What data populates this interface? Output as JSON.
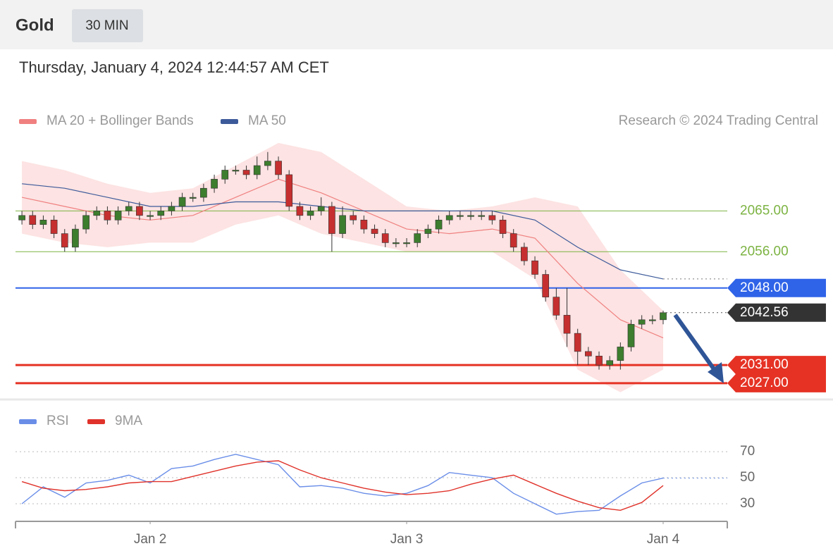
{
  "header": {
    "title": "Gold",
    "interval": "30 MIN",
    "timestamp": "Thursday, January 4, 2024 12:44:57 AM CET",
    "credit": "Research © 2024 Trading Central"
  },
  "chart_data": [
    {
      "type": "candlestick",
      "x": [
        -12,
        -11,
        -10,
        -9,
        -8,
        -7,
        -6,
        -5,
        -4,
        -3,
        -2,
        -1,
        0,
        1,
        2,
        3,
        4,
        5,
        6,
        7,
        8,
        9,
        10,
        11,
        12,
        13,
        14,
        15,
        16,
        17,
        18,
        19,
        20,
        21,
        22,
        23,
        24,
        25,
        26,
        27,
        28,
        29,
        30,
        31,
        32,
        33,
        34,
        35,
        36,
        37,
        38,
        39,
        40,
        41,
        42,
        43,
        44,
        45,
        46,
        47,
        48
      ],
      "open": [
        2063,
        2064,
        2062,
        2063,
        2060,
        2057,
        2061,
        2064,
        2065,
        2063,
        2065,
        2066,
        2064,
        2064,
        2065,
        2066,
        2068,
        2068,
        2070,
        2072,
        2074,
        2074,
        2073,
        2075,
        2076,
        2073,
        2066,
        2064,
        2065,
        2066,
        2060,
        2064,
        2063,
        2061,
        2060,
        2058,
        2058,
        2058,
        2060,
        2061,
        2063,
        2064,
        2064,
        2064,
        2064,
        2063,
        2060,
        2057,
        2054,
        2051,
        2046,
        2042,
        2038,
        2034,
        2033,
        2031,
        2032,
        2035,
        2040,
        2041,
        2041
      ],
      "high": [
        2065,
        2065,
        2064,
        2064,
        2061,
        2062,
        2065,
        2066,
        2066,
        2066,
        2067,
        2067,
        2065,
        2066,
        2067,
        2069,
        2069,
        2071,
        2073,
        2075,
        2075,
        2075,
        2077,
        2078,
        2077,
        2074,
        2067,
        2066,
        2068,
        2067,
        2066,
        2065,
        2064,
        2062,
        2061,
        2059,
        2059,
        2061,
        2062,
        2064,
        2065,
        2065,
        2065,
        2065,
        2065,
        2064,
        2061,
        2058,
        2055,
        2052,
        2048,
        2048,
        2039,
        2035,
        2034,
        2033,
        2036,
        2041,
        2042,
        2042,
        2043
      ],
      "low": [
        2062,
        2061,
        2061,
        2059,
        2056,
        2056,
        2060,
        2063,
        2062,
        2062,
        2064,
        2063,
        2063,
        2063,
        2064,
        2065,
        2067,
        2067,
        2069,
        2071,
        2073,
        2072,
        2072,
        2074,
        2072,
        2065,
        2063,
        2063,
        2064,
        2056,
        2059,
        2062,
        2060,
        2059,
        2057,
        2057,
        2057,
        2057,
        2059,
        2060,
        2062,
        2063,
        2063,
        2063,
        2062,
        2059,
        2056,
        2053,
        2050,
        2045,
        2041,
        2035,
        2031,
        2031,
        2030,
        2030,
        2030,
        2034,
        2039,
        2040,
        2040
      ],
      "close": [
        2064,
        2062,
        2063,
        2060,
        2057,
        2061,
        2064,
        2065,
        2063,
        2065,
        2066,
        2064,
        2064,
        2065,
        2066,
        2068,
        2068,
        2070,
        2072,
        2074,
        2074,
        2073,
        2075,
        2076,
        2073,
        2066,
        2064,
        2065,
        2066,
        2060,
        2064,
        2063,
        2061,
        2060,
        2058,
        2058,
        2058,
        2060,
        2061,
        2063,
        2064,
        2064,
        2064,
        2064,
        2063,
        2060,
        2057,
        2054,
        2051,
        2046,
        2042,
        2038,
        2034,
        2033,
        2031,
        2032,
        2035,
        2040,
        2041,
        2041,
        2042.56
      ],
      "up_color": "#3d7d2e",
      "down_color": "#c62f2f",
      "xlim": [
        -12.6,
        54
      ],
      "ylim": [
        2024.5,
        2082
      ],
      "overlays": {
        "x": [
          -12,
          -8,
          -4,
          0,
          4,
          8,
          12,
          16,
          20,
          24,
          28,
          32,
          36,
          40,
          44,
          48
        ],
        "series": [
          {
            "name": "MA 20 + Bollinger Bands",
            "color": "#f08080",
            "band_color": "#fde3e3",
            "values": [
              2068,
              2066,
              2064,
              2063,
              2064,
              2068,
              2072,
              2069,
              2065,
              2061,
              2060,
              2061,
              2059,
              2049,
              2041,
              2037
            ],
            "upper": [
              2076,
              2074,
              2071,
              2069,
              2070,
              2075,
              2080,
              2078,
              2072,
              2066,
              2065,
              2066,
              2068,
              2066,
              2052,
              2043
            ],
            "lower": [
              2060,
              2058,
              2057,
              2058,
              2058,
              2062,
              2064,
              2060,
              2058,
              2056,
              2056,
              2056,
              2050,
              2030,
              2025,
              2030
            ]
          },
          {
            "name": "MA 50",
            "color": "#3c5a9a",
            "values": [
              2071,
              2070,
              2068,
              2066,
              2066,
              2067,
              2067,
              2066,
              2065,
              2065,
              2065,
              2065,
              2063,
              2057,
              2052,
              2050
            ]
          }
        ]
      },
      "levels": [
        {
          "value": 2065,
          "label": "2065.00",
          "color": "#7cb342",
          "boxed": false
        },
        {
          "value": 2056,
          "label": "2056.00",
          "color": "#7cb342",
          "boxed": false
        },
        {
          "value": 2048,
          "label": "2048.00",
          "color": "#2f63e8",
          "boxed": true
        },
        {
          "value": 2031,
          "label": "2031.00",
          "color": "#e53224",
          "boxed": true
        },
        {
          "value": 2027,
          "label": "2027.00",
          "color": "#e53224",
          "boxed": true
        }
      ],
      "last": {
        "value": 2042.56,
        "label": "2042.56",
        "color": "#333333"
      }
    },
    {
      "type": "line",
      "x": [
        -12,
        -10,
        -8,
        -6,
        -4,
        -2,
        0,
        2,
        4,
        6,
        8,
        10,
        12,
        14,
        16,
        18,
        20,
        22,
        24,
        26,
        28,
        30,
        32,
        34,
        36,
        38,
        40,
        42,
        44,
        46,
        48
      ],
      "series": [
        {
          "name": "RSI",
          "color": "#6a8ee8",
          "values": [
            30,
            43,
            35,
            46,
            48,
            52,
            46,
            57,
            59,
            64,
            68,
            64,
            60,
            43,
            44,
            42,
            38,
            36,
            38,
            44,
            54,
            52,
            50,
            38,
            30,
            22,
            24,
            25,
            36,
            46,
            49.7
          ]
        },
        {
          "name": "9MA",
          "color": "#e0322a",
          "values": [
            47,
            42,
            40,
            41,
            43,
            46,
            47,
            47,
            51,
            55,
            59,
            62,
            63,
            56,
            50,
            46,
            42,
            39,
            37,
            38,
            40,
            45,
            49,
            52,
            45,
            38,
            32,
            27,
            25,
            31,
            44
          ]
        }
      ],
      "xlim": [
        -12.6,
        54
      ],
      "ylim": [
        16.5,
        81.4
      ],
      "yticks": [
        30,
        50,
        70
      ],
      "xticks": [
        {
          "value": 0,
          "label": "Jan 2"
        },
        {
          "value": 24,
          "label": "Jan 3"
        },
        {
          "value": 48,
          "label": "Jan 4"
        }
      ]
    }
  ]
}
